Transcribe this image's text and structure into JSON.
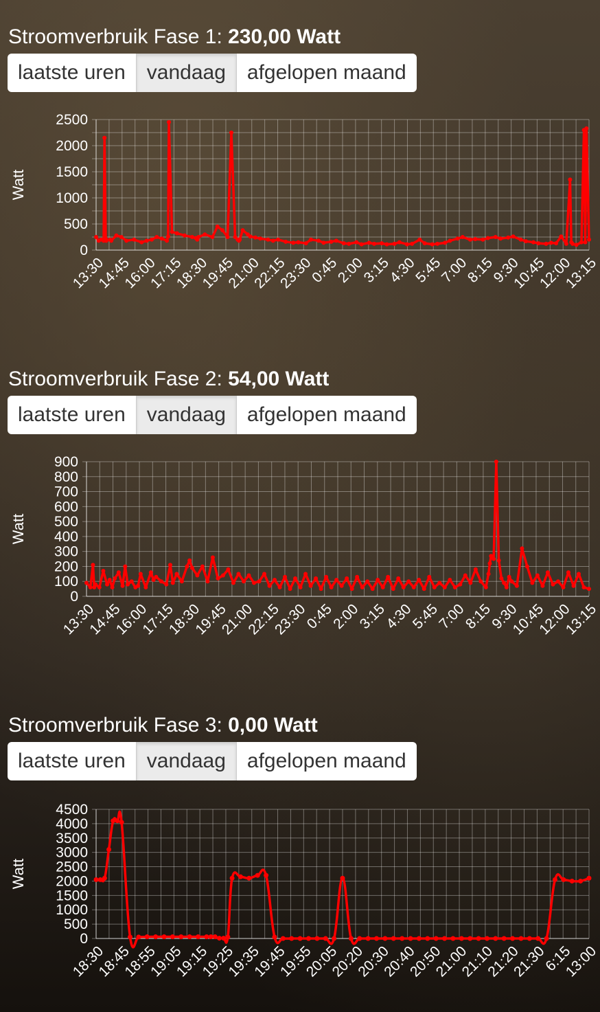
{
  "panels": [
    {
      "title_prefix": "Stroomverbruik Fase 1: ",
      "title_value": "230,00 Watt",
      "buttons": [
        "laatste uren",
        "vandaag",
        "afgelopen maand"
      ],
      "active_button": 1
    },
    {
      "title_prefix": "Stroomverbruik Fase 2: ",
      "title_value": "54,00 Watt",
      "buttons": [
        "laatste uren",
        "vandaag",
        "afgelopen maand"
      ],
      "active_button": 1
    },
    {
      "title_prefix": "Stroomverbruik Fase 3: ",
      "title_value": "0,00 Watt",
      "buttons": [
        "laatste uren",
        "vandaag",
        "afgelopen maand"
      ],
      "active_button": 1
    }
  ],
  "chart_data": [
    {
      "type": "line",
      "title": "",
      "xlabel": "",
      "ylabel": "Watt",
      "ylim": [
        0,
        2500
      ],
      "yticks": [
        0,
        500,
        1000,
        1500,
        2000,
        2500
      ],
      "xticks": [
        "13:30",
        "14:45",
        "16:00",
        "17:15",
        "18:30",
        "19:45",
        "21:00",
        "22:15",
        "23:30",
        "0:45",
        "2:00",
        "3:15",
        "4:30",
        "5:45",
        "7:00",
        "8:15",
        "9:30",
        "10:45",
        "12:00",
        "13:15"
      ],
      "grid": true,
      "color": "#ff0000",
      "series": [
        {
          "x": [
            0,
            0.1,
            0.2,
            0.3,
            0.33,
            0.38,
            0.4,
            0.55,
            0.6,
            0.8,
            1.0,
            1.2,
            1.5,
            1.8,
            2.0,
            2.2,
            2.4,
            2.6,
            2.8,
            2.85,
            2.88,
            3.0,
            3.2,
            3.5,
            3.8,
            3.95,
            4.0,
            4.05,
            4.3,
            4.6,
            4.8,
            5.0,
            5.2,
            5.35,
            5.5,
            5.6,
            5.65,
            5.68,
            5.8,
            6.0,
            6.1,
            6.3,
            6.5,
            6.8,
            7.0,
            7.2,
            7.5,
            7.8,
            8.0,
            8.3,
            8.5,
            8.8,
            9.0,
            9.3,
            9.5,
            9.8,
            10.0,
            10.3,
            10.5,
            10.8,
            11.0,
            11.3,
            11.5,
            11.8,
            12.0,
            12.3,
            12.5,
            12.8,
            13.0,
            13.3,
            13.5,
            13.8,
            14.0,
            14.3,
            14.5,
            14.8,
            15.0,
            15.3,
            15.5,
            15.8,
            16.0,
            16.3,
            16.5,
            16.8,
            17.0,
            17.3,
            17.5,
            17.8,
            18.0,
            18.2,
            18.4,
            18.6,
            18.75,
            18.8,
            18.85,
            19.0,
            19.2,
            19.3,
            19.35,
            19.4,
            19.5
          ],
          "y": [
            250,
            180,
            200,
            180,
            2150,
            220,
            180,
            200,
            180,
            280,
            250,
            180,
            200,
            150,
            180,
            200,
            250,
            220,
            180,
            260,
            2450,
            350,
            320,
            280,
            250,
            230,
            200,
            250,
            300,
            250,
            450,
            380,
            250,
            2250,
            250,
            200,
            180,
            200,
            380,
            300,
            260,
            240,
            220,
            200,
            180,
            200,
            160,
            140,
            150,
            130,
            200,
            180,
            140,
            160,
            180,
            130,
            120,
            150,
            110,
            140,
            120,
            130,
            110,
            120,
            150,
            110,
            120,
            200,
            130,
            110,
            120,
            140,
            180,
            220,
            250,
            200,
            210,
            200,
            230,
            250,
            220,
            240,
            260,
            200,
            170,
            150,
            130,
            120,
            140,
            130,
            260,
            120,
            1350,
            150,
            120,
            100,
            150,
            2300,
            150,
            2330,
            200
          ],
          "name": ""
        }
      ]
    },
    {
      "type": "line",
      "title": "",
      "xlabel": "",
      "ylabel": "Watt",
      "ylim": [
        0,
        900
      ],
      "yticks": [
        0,
        100,
        200,
        300,
        400,
        500,
        600,
        700,
        800,
        900
      ],
      "xticks": [
        "13:30",
        "14:45",
        "16:00",
        "17:15",
        "18:30",
        "19:45",
        "21:00",
        "22:15",
        "23:30",
        "0:45",
        "2:00",
        "3:15",
        "4:30",
        "5:45",
        "7:00",
        "8:15",
        "9:30",
        "10:45",
        "12:00",
        "13:15"
      ],
      "grid": true,
      "color": "#ff0000",
      "series": [
        {
          "x": [
            0,
            0.15,
            0.25,
            0.3,
            0.35,
            0.5,
            0.65,
            0.8,
            0.9,
            1.0,
            1.1,
            1.25,
            1.4,
            1.5,
            1.6,
            1.75,
            1.9,
            2.0,
            2.1,
            2.3,
            2.5,
            2.6,
            2.7,
            2.9,
            3.1,
            3.25,
            3.35,
            3.5,
            3.7,
            3.9,
            4.0,
            4.1,
            4.3,
            4.5,
            4.7,
            4.9,
            5.1,
            5.3,
            5.5,
            5.7,
            5.9,
            6.1,
            6.3,
            6.5,
            6.7,
            6.9,
            7.1,
            7.3,
            7.5,
            7.7,
            7.9,
            8.1,
            8.3,
            8.5,
            8.7,
            8.9,
            9.1,
            9.3,
            9.5,
            9.7,
            9.9,
            10.1,
            10.3,
            10.5,
            10.7,
            10.9,
            11.1,
            11.3,
            11.5,
            11.7,
            11.9,
            12.1,
            12.3,
            12.5,
            12.7,
            12.9,
            13.1,
            13.3,
            13.5,
            13.7,
            13.9,
            14.1,
            14.3,
            14.5,
            14.7,
            14.9,
            15.1,
            15.3,
            15.5,
            15.6,
            15.65,
            15.7,
            15.8,
            15.9,
            16.0,
            16.1,
            16.2,
            16.3,
            16.4,
            16.5,
            16.7,
            16.9,
            17.1,
            17.3,
            17.5,
            17.7,
            17.9,
            18.1,
            18.3,
            18.5,
            18.7,
            18.9,
            19.1,
            19.3,
            19.5
          ],
          "y": [
            90,
            60,
            210,
            60,
            80,
            60,
            170,
            80,
            110,
            60,
            120,
            160,
            70,
            200,
            80,
            100,
            60,
            70,
            150,
            60,
            160,
            110,
            130,
            100,
            80,
            210,
            90,
            150,
            100,
            200,
            240,
            190,
            140,
            200,
            100,
            260,
            120,
            140,
            180,
            90,
            150,
            100,
            140,
            90,
            100,
            150,
            70,
            110,
            60,
            130,
            50,
            120,
            60,
            150,
            70,
            120,
            50,
            130,
            60,
            110,
            70,
            120,
            50,
            130,
            60,
            100,
            50,
            110,
            60,
            130,
            50,
            120,
            60,
            100,
            60,
            110,
            50,
            130,
            60,
            90,
            60,
            110,
            60,
            80,
            140,
            90,
            180,
            100,
            60,
            150,
            220,
            270,
            250,
            900,
            240,
            120,
            90,
            60,
            130,
            100,
            70,
            320,
            200,
            90,
            140,
            70,
            160,
            80,
            100,
            60,
            160,
            70,
            150,
            60,
            50
          ],
          "name": ""
        }
      ]
    },
    {
      "type": "line",
      "title": "",
      "xlabel": "",
      "ylabel": "Watt",
      "ylim": [
        0,
        4500
      ],
      "yticks": [
        0,
        500,
        1000,
        1500,
        2000,
        2500,
        3000,
        3500,
        4000,
        4500
      ],
      "xticks": [
        "18:30",
        "18:45",
        "18:55",
        "19:05",
        "19:15",
        "19:25",
        "19:35",
        "19:45",
        "19:55",
        "20:05",
        "20:20",
        "20:30",
        "20:40",
        "20:50",
        "21:00",
        "21:10",
        "21:20",
        "21:30",
        "6:15",
        "13:00"
      ],
      "grid": true,
      "color": "#ff0000",
      "series": [
        {
          "x": [
            0,
            0.5,
            1.0,
            1.5,
            2.0,
            2.5,
            3,
            4,
            5,
            6,
            7,
            8,
            9,
            10,
            11,
            12,
            13,
            13.5,
            14,
            14.5,
            15,
            15.5,
            16,
            17,
            18,
            19,
            20,
            21,
            22,
            23,
            24,
            25,
            26,
            27,
            28,
            29,
            30,
            31,
            32,
            33,
            34,
            35,
            36,
            37,
            38,
            39,
            40,
            41,
            42,
            43,
            44,
            45,
            46,
            47,
            48,
            49,
            50,
            51,
            52,
            53,
            54,
            55,
            56,
            57,
            58
          ],
          "y": [
            2050,
            2050,
            2100,
            3100,
            4100,
            4100,
            4050,
            50,
            50,
            60,
            60,
            60,
            60,
            60,
            60,
            60,
            60,
            60,
            60,
            10,
            10,
            50,
            2100,
            2150,
            2100,
            2200,
            2200,
            50,
            0,
            0,
            0,
            0,
            0,
            0,
            0,
            2100,
            0,
            0,
            0,
            0,
            0,
            0,
            0,
            0,
            0,
            0,
            0,
            0,
            0,
            0,
            0,
            0,
            0,
            0,
            0,
            0,
            0,
            0,
            0,
            0,
            2050,
            2050,
            2000,
            2000,
            2100
          ],
          "name": ""
        }
      ]
    }
  ]
}
